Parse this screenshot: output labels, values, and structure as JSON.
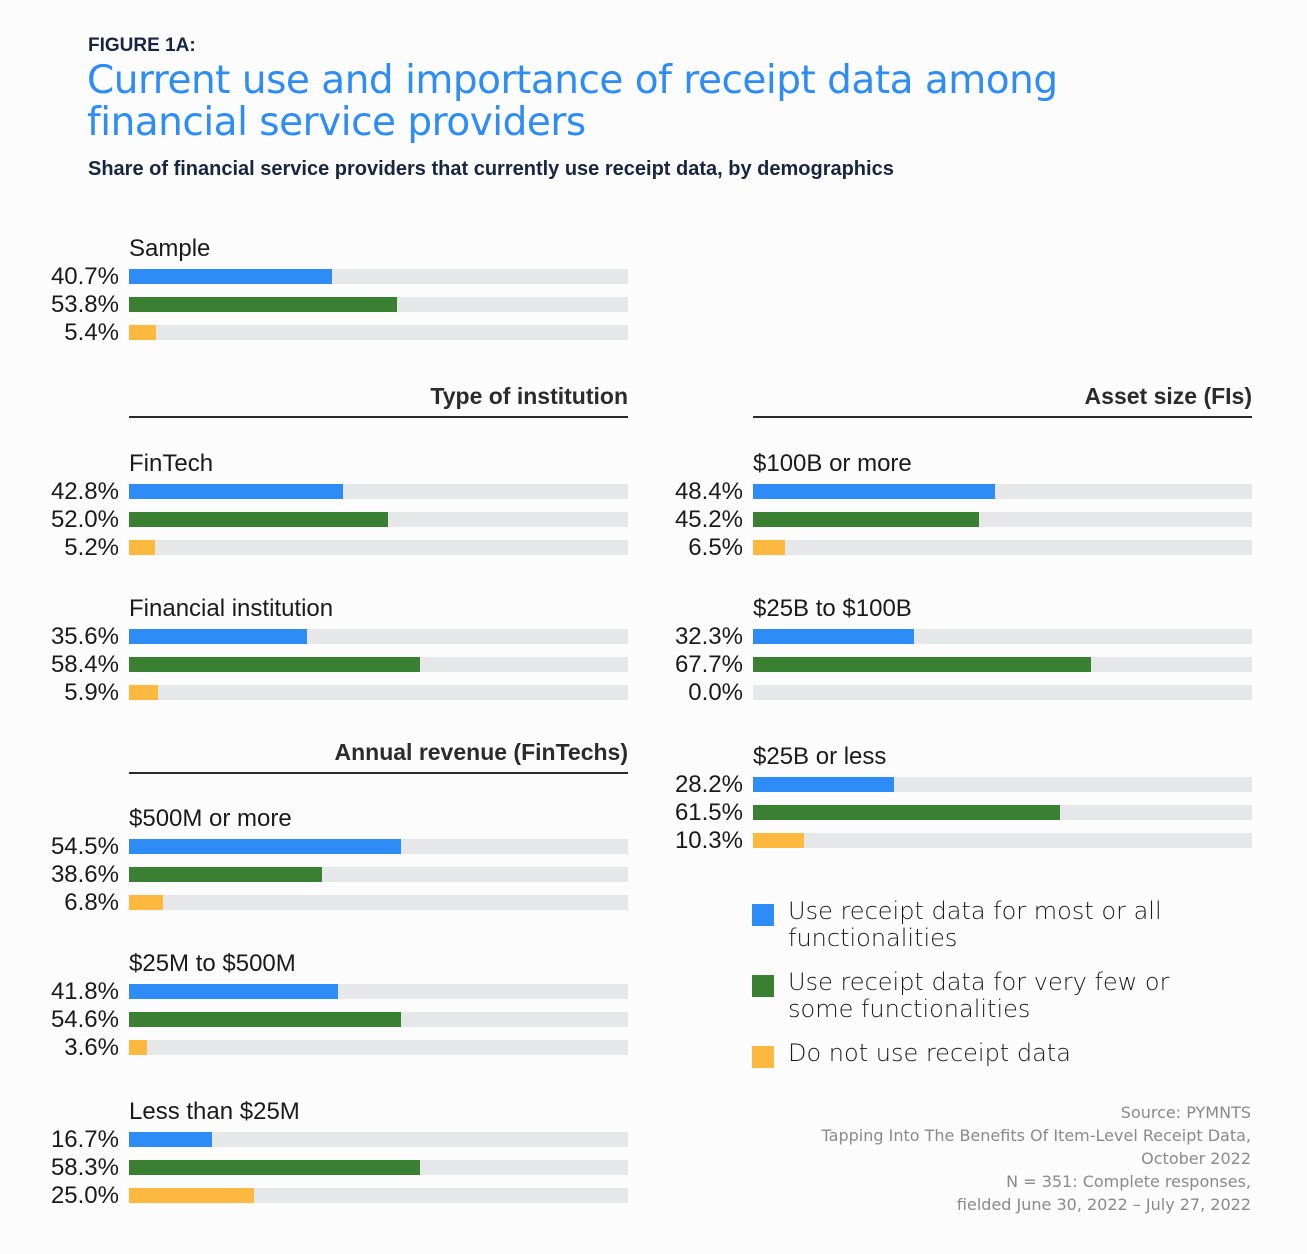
{
  "header": {
    "figure_label": "FIGURE 1A:",
    "title_line1": "Current use and importance of receipt data among",
    "title_line2": "financial service providers",
    "subtitle": "Share of financial service providers that currently use receipt data, by demographics"
  },
  "colors": {
    "most_or_all": "#2e8cf6",
    "few_or_some": "#3a8033",
    "do_not_use": "#fdb83f",
    "track": "#e6e7e9"
  },
  "chart_data": {
    "type": "bar",
    "orientation": "horizontal",
    "xlim": [
      0,
      100
    ],
    "unit": "%",
    "series_names": [
      "Use receipt data for most or all functionalities",
      "Use receipt data for very few or some functionalities",
      "Do not use receipt data"
    ],
    "sections": [
      {
        "heading": "",
        "groups": [
          {
            "label": "Sample",
            "values": [
              40.7,
              53.8,
              5.4
            ],
            "labels": [
              "40.7%",
              "53.8%",
              "5.4%"
            ]
          }
        ]
      },
      {
        "heading": "Type of institution",
        "groups": [
          {
            "label": "FinTech",
            "values": [
              42.8,
              52.0,
              5.2
            ],
            "labels": [
              "42.8%",
              "52.0%",
              "5.2%"
            ]
          },
          {
            "label": "Financial institution",
            "values": [
              35.6,
              58.4,
              5.9
            ],
            "labels": [
              "35.6%",
              "58.4%",
              "5.9%"
            ]
          }
        ]
      },
      {
        "heading": "Annual revenue (FinTechs)",
        "groups": [
          {
            "label": "$500M or more",
            "values": [
              54.5,
              38.6,
              6.8
            ],
            "labels": [
              "54.5%",
              "38.6%",
              "6.8%"
            ]
          },
          {
            "label": "$25M to $500M",
            "values": [
              41.8,
              54.6,
              3.6
            ],
            "labels": [
              "41.8%",
              "54.6%",
              "3.6%"
            ]
          },
          {
            "label": "Less than $25M",
            "values": [
              16.7,
              58.3,
              25.0
            ],
            "labels": [
              "16.7%",
              "58.3%",
              "25.0%"
            ]
          }
        ]
      },
      {
        "heading": "Asset size (FIs)",
        "groups": [
          {
            "label": "$100B or more",
            "values": [
              48.4,
              45.2,
              6.5
            ],
            "labels": [
              "48.4%",
              "45.2%",
              "6.5%"
            ]
          },
          {
            "label": "$25B to $100B",
            "values": [
              32.3,
              67.7,
              0.0
            ],
            "labels": [
              "32.3%",
              "67.7%",
              "0.0%"
            ]
          },
          {
            "label": "$25B or less",
            "values": [
              28.2,
              61.5,
              10.3
            ],
            "labels": [
              "28.2%",
              "61.5%",
              "10.3%"
            ]
          }
        ]
      }
    ],
    "legend": [
      {
        "line1": "Use receipt data for most or all",
        "line2": "functionalities"
      },
      {
        "line1": "Use receipt data for very few or",
        "line2": "some functionalities"
      },
      {
        "line1": "Do not use receipt data",
        "line2": ""
      }
    ],
    "legend_position": "bottom-right"
  },
  "source": {
    "line1": "Source: PYMNTS",
    "line2": "Tapping Into The Benefits Of Item-Level Receipt Data,",
    "line3": "October 2022",
    "line4": "N = 351: Complete responses,",
    "line5": "fielded June 30, 2022 – July 27, 2022"
  }
}
